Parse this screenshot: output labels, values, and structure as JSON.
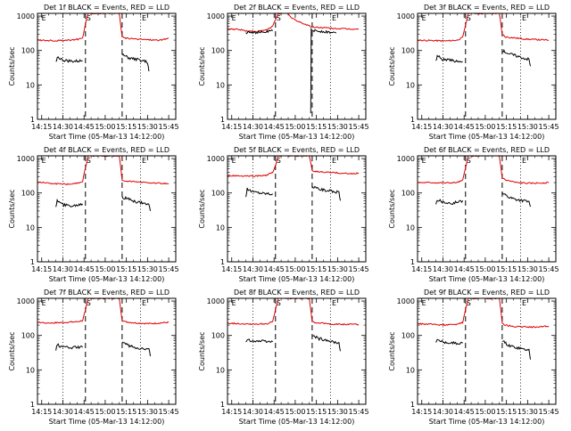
{
  "chart_data": {
    "type": "line",
    "layout": "3x3 grid",
    "shared": {
      "xlabel": "Start Time (05-Mar-13 14:12:00)",
      "ylabel": "Counts/sec",
      "x_ticks": [
        "14:15",
        "14:30",
        "14:45",
        "15:00",
        "15:15",
        "15:30",
        "15:45"
      ],
      "x_tick_minutes": [
        3,
        18,
        33,
        48,
        63,
        78,
        93
      ],
      "xlim_minutes": [
        0,
        98
      ],
      "y_scale": "log",
      "y_ticks": [
        "1",
        "10",
        "100",
        "1000"
      ],
      "ylim": [
        1,
        1200
      ],
      "vlines_dashed_minutes": [
        34,
        60
      ],
      "vlines_dotted_minutes": [
        18,
        73
      ],
      "markers": {
        "E": 1,
        "S": 34,
        "E2": 74
      },
      "series_colors": {
        "black": "#000000",
        "red": "#e00000"
      }
    },
    "panels": [
      {
        "title": "Det 1f BLACK = Events, RED = LLD",
        "red": [
          [
            0,
            200
          ],
          [
            10,
            195
          ],
          [
            20,
            195
          ],
          [
            28,
            210
          ],
          [
            32,
            230
          ],
          [
            34,
            600
          ],
          [
            36,
            1200
          ],
          [
            58,
            1200
          ],
          [
            60,
            250
          ],
          [
            62,
            230
          ],
          [
            70,
            215
          ],
          [
            80,
            205
          ],
          [
            88,
            200
          ],
          [
            93,
            230
          ]
        ],
        "black": [
          [
            13,
            45
          ],
          [
            14,
            65
          ],
          [
            18,
            52
          ],
          [
            25,
            48
          ],
          [
            32,
            50
          ],
          [
            60,
            75
          ],
          [
            65,
            60
          ],
          [
            70,
            55
          ],
          [
            75,
            50
          ],
          [
            78,
            45
          ],
          [
            79,
            25
          ]
        ]
      },
      {
        "title": "Det 2f BLACK = Events, RED = LLD",
        "red": [
          [
            0,
            430
          ],
          [
            8,
            410
          ],
          [
            15,
            360
          ],
          [
            22,
            360
          ],
          [
            28,
            400
          ],
          [
            32,
            500
          ],
          [
            34,
            800
          ],
          [
            36,
            1200
          ],
          [
            43,
            1200
          ],
          [
            45,
            900
          ],
          [
            50,
            700
          ],
          [
            56,
            560
          ],
          [
            60,
            480
          ],
          [
            64,
            470
          ],
          [
            75,
            440
          ],
          [
            85,
            420
          ],
          [
            93,
            420
          ]
        ],
        "black": [
          [
            13,
            320
          ],
          [
            15,
            360
          ],
          [
            20,
            330
          ],
          [
            26,
            340
          ],
          [
            32,
            370
          ],
          [
            59,
            1.6
          ],
          [
            59.3,
            400
          ],
          [
            62,
            370
          ],
          [
            68,
            360
          ],
          [
            72,
            340
          ],
          [
            77,
            320
          ]
        ]
      },
      {
        "title": "Det 3f BLACK = Events, RED = LLD",
        "red": [
          [
            0,
            200
          ],
          [
            10,
            195
          ],
          [
            20,
            190
          ],
          [
            28,
            200
          ],
          [
            32,
            240
          ],
          [
            34,
            550
          ],
          [
            36,
            1200
          ],
          [
            58,
            1200
          ],
          [
            60,
            300
          ],
          [
            62,
            250
          ],
          [
            70,
            230
          ],
          [
            80,
            210
          ],
          [
            93,
            200
          ]
        ],
        "black": [
          [
            13,
            50
          ],
          [
            14,
            70
          ],
          [
            18,
            55
          ],
          [
            25,
            50
          ],
          [
            32,
            48
          ],
          [
            60,
            100
          ],
          [
            65,
            80
          ],
          [
            70,
            70
          ],
          [
            75,
            60
          ],
          [
            79,
            55
          ],
          [
            80,
            35
          ]
        ]
      },
      {
        "title": "Det 4f BLACK = Events, RED = LLD",
        "red": [
          [
            0,
            210
          ],
          [
            10,
            190
          ],
          [
            20,
            180
          ],
          [
            28,
            190
          ],
          [
            32,
            220
          ],
          [
            34,
            550
          ],
          [
            36,
            1200
          ],
          [
            58,
            1200
          ],
          [
            60,
            240
          ],
          [
            62,
            220
          ],
          [
            70,
            210
          ],
          [
            80,
            200
          ],
          [
            93,
            185
          ]
        ],
        "black": [
          [
            13,
            40
          ],
          [
            14,
            60
          ],
          [
            18,
            45
          ],
          [
            25,
            42
          ],
          [
            32,
            48
          ],
          [
            60,
            75
          ],
          [
            65,
            65
          ],
          [
            70,
            55
          ],
          [
            75,
            50
          ],
          [
            79,
            45
          ],
          [
            80,
            30
          ]
        ]
      },
      {
        "title": "Det 5f BLACK = Events, RED = LLD",
        "red": [
          [
            0,
            320
          ],
          [
            10,
            310
          ],
          [
            20,
            310
          ],
          [
            28,
            330
          ],
          [
            32,
            400
          ],
          [
            34,
            600
          ],
          [
            36,
            1200
          ],
          [
            58,
            1200
          ],
          [
            60,
            450
          ],
          [
            62,
            420
          ],
          [
            70,
            400
          ],
          [
            80,
            380
          ],
          [
            88,
            360
          ],
          [
            93,
            380
          ]
        ],
        "black": [
          [
            13,
            80
          ],
          [
            14,
            130
          ],
          [
            18,
            110
          ],
          [
            25,
            100
          ],
          [
            32,
            95
          ],
          [
            60,
            150
          ],
          [
            65,
            130
          ],
          [
            70,
            120
          ],
          [
            75,
            110
          ],
          [
            79,
            105
          ],
          [
            80,
            60
          ]
        ]
      },
      {
        "title": "Det 6f BLACK = Events, RED = LLD",
        "red": [
          [
            0,
            200
          ],
          [
            10,
            200
          ],
          [
            20,
            195
          ],
          [
            28,
            200
          ],
          [
            32,
            230
          ],
          [
            34,
            550
          ],
          [
            36,
            1200
          ],
          [
            58,
            1200
          ],
          [
            60,
            280
          ],
          [
            62,
            240
          ],
          [
            70,
            200
          ],
          [
            80,
            190
          ],
          [
            93,
            200
          ]
        ],
        "black": [
          [
            13,
            50
          ],
          [
            14,
            65
          ],
          [
            18,
            55
          ],
          [
            25,
            50
          ],
          [
            32,
            60
          ],
          [
            60,
            100
          ],
          [
            65,
            75
          ],
          [
            70,
            65
          ],
          [
            75,
            60
          ],
          [
            79,
            55
          ],
          [
            80,
            40
          ]
        ]
      },
      {
        "title": "Det 7f BLACK = Events, RED = LLD",
        "red": [
          [
            0,
            240
          ],
          [
            10,
            230
          ],
          [
            20,
            240
          ],
          [
            28,
            250
          ],
          [
            32,
            270
          ],
          [
            34,
            550
          ],
          [
            36,
            1200
          ],
          [
            58,
            1200
          ],
          [
            60,
            280
          ],
          [
            62,
            250
          ],
          [
            70,
            230
          ],
          [
            80,
            220
          ],
          [
            93,
            240
          ]
        ],
        "black": [
          [
            13,
            40
          ],
          [
            14,
            55
          ],
          [
            18,
            45
          ],
          [
            25,
            45
          ],
          [
            32,
            45
          ],
          [
            60,
            65
          ],
          [
            65,
            50
          ],
          [
            70,
            45
          ],
          [
            75,
            40
          ],
          [
            79,
            40
          ],
          [
            80,
            25
          ]
        ]
      },
      {
        "title": "Det 8f BLACK = Events, RED = LLD",
        "red": [
          [
            0,
            230
          ],
          [
            10,
            220
          ],
          [
            20,
            215
          ],
          [
            28,
            220
          ],
          [
            32,
            250
          ],
          [
            34,
            550
          ],
          [
            36,
            1200
          ],
          [
            58,
            1200
          ],
          [
            60,
            260
          ],
          [
            62,
            240
          ],
          [
            70,
            220
          ],
          [
            80,
            210
          ],
          [
            93,
            210
          ]
        ],
        "black": [
          [
            13,
            60
          ],
          [
            14,
            75
          ],
          [
            18,
            70
          ],
          [
            25,
            68
          ],
          [
            32,
            65
          ],
          [
            60,
            100
          ],
          [
            65,
            80
          ],
          [
            70,
            75
          ],
          [
            75,
            65
          ],
          [
            79,
            60
          ],
          [
            80,
            35
          ]
        ]
      },
      {
        "title": "Det 9f BLACK = Events, RED = LLD",
        "red": [
          [
            0,
            220
          ],
          [
            10,
            210
          ],
          [
            20,
            200
          ],
          [
            28,
            210
          ],
          [
            32,
            240
          ],
          [
            34,
            550
          ],
          [
            36,
            1200
          ],
          [
            58,
            1200
          ],
          [
            60,
            240
          ],
          [
            62,
            200
          ],
          [
            70,
            180
          ],
          [
            80,
            175
          ],
          [
            93,
            185
          ]
        ],
        "black": [
          [
            13,
            60
          ],
          [
            14,
            75
          ],
          [
            18,
            65
          ],
          [
            25,
            60
          ],
          [
            32,
            60
          ],
          [
            60,
            70
          ],
          [
            65,
            50
          ],
          [
            70,
            45
          ],
          [
            75,
            40
          ],
          [
            79,
            38
          ],
          [
            80,
            20
          ]
        ]
      }
    ]
  }
}
